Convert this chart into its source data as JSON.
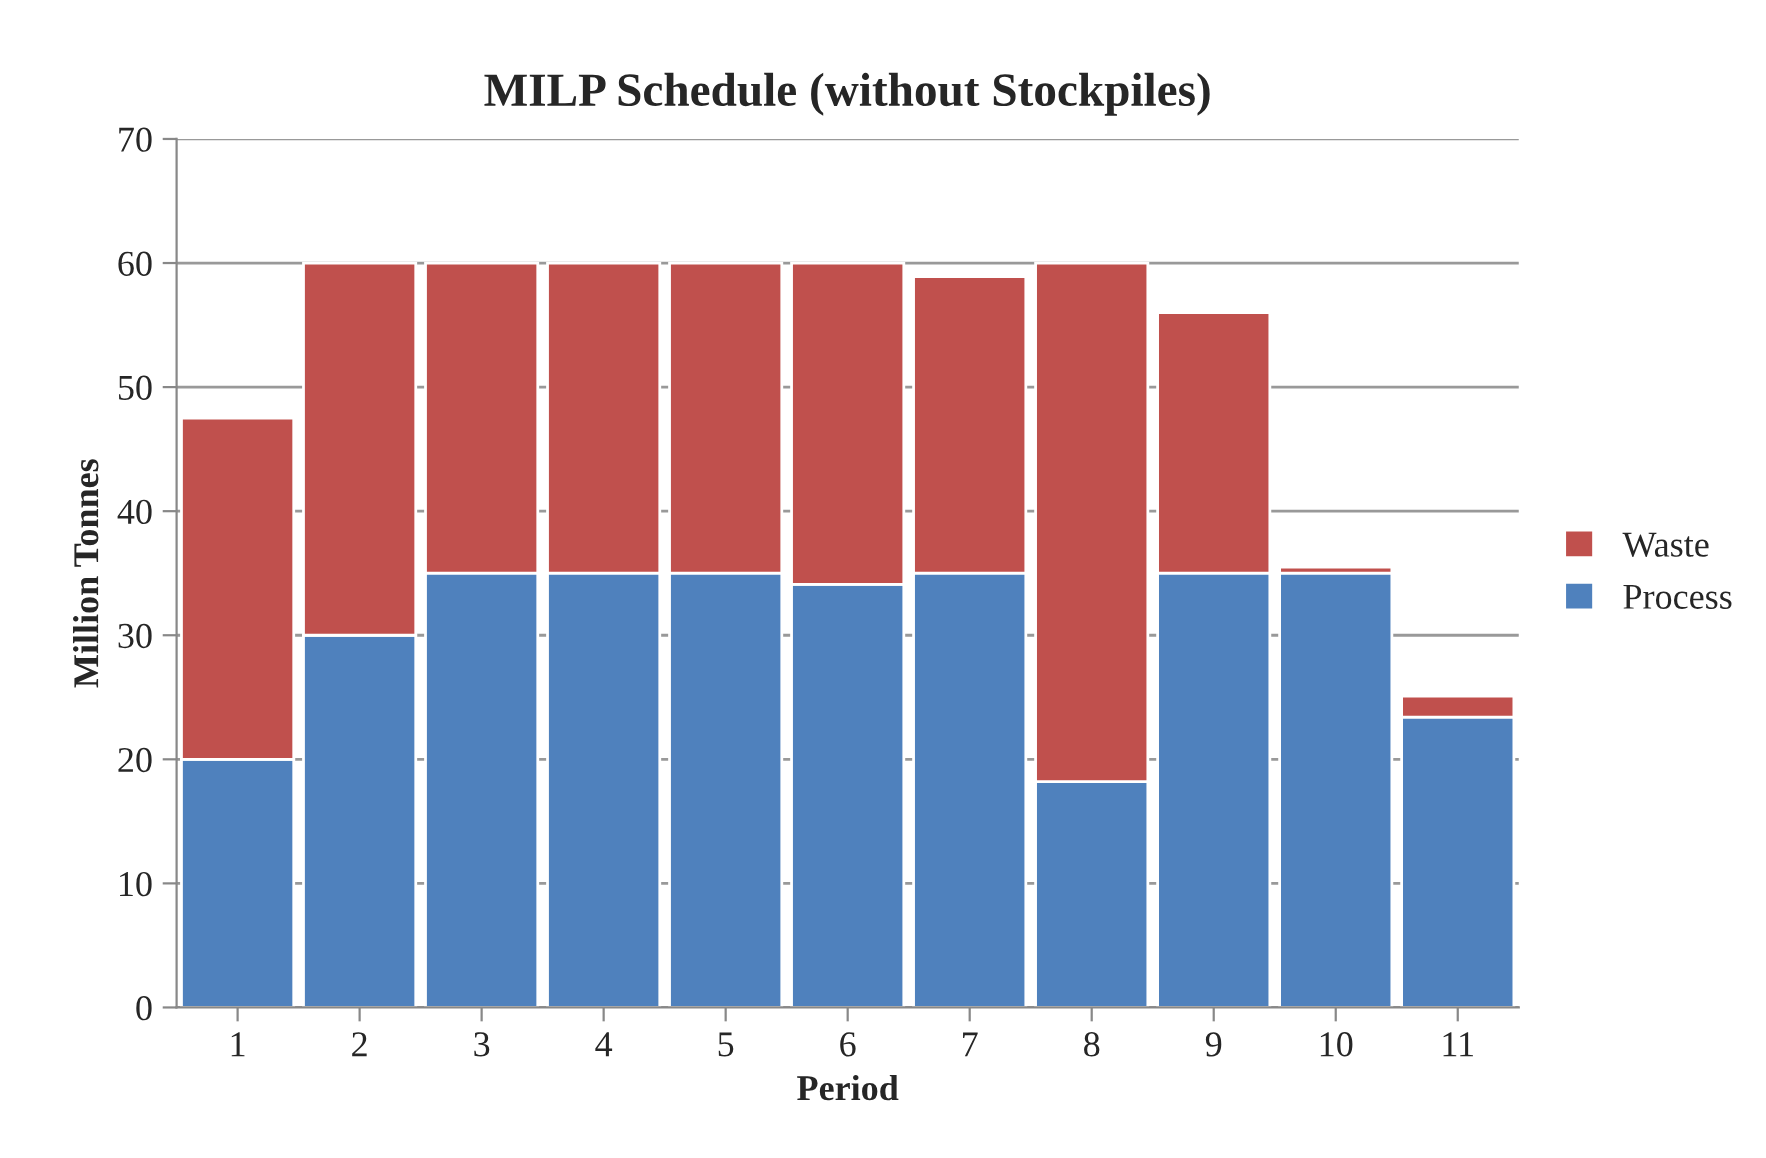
{
  "chart_data": {
    "type": "bar",
    "title": "MILP Schedule (without Stockpiles)",
    "xlabel": "Period",
    "ylabel": "Million Tonnes",
    "categories": [
      "1",
      "2",
      "3",
      "4",
      "5",
      "6",
      "7",
      "8",
      "9",
      "10",
      "11"
    ],
    "series": [
      {
        "name": "Process",
        "color": "#4f81bd",
        "values": [
          20,
          30,
          35,
          35,
          35,
          34.1,
          35,
          18.2,
          35,
          35,
          23.4
        ]
      },
      {
        "name": "Waste",
        "color": "#c0504d",
        "values": [
          27.5,
          30,
          25,
          25,
          25,
          25.9,
          23.9,
          41.8,
          21,
          0.5,
          1.7
        ]
      }
    ],
    "stacked": true,
    "ylim": [
      0,
      70
    ],
    "yticks": [
      0,
      10,
      20,
      30,
      40,
      50,
      60,
      70
    ],
    "grid": "y",
    "legend": "right"
  }
}
